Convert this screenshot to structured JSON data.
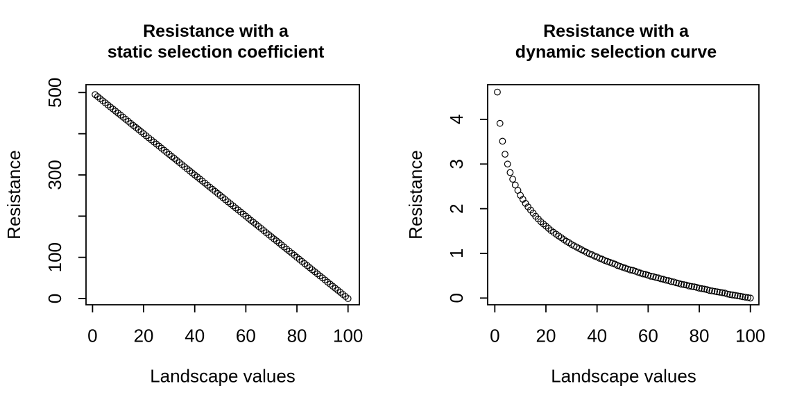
{
  "page": {
    "background": "#ffffff",
    "foreground": "#000000"
  },
  "chart_data": [
    {
      "type": "scatter",
      "title_lines": [
        "Resistance with a",
        "static selection coefficient"
      ],
      "xlabel": "Landscape values",
      "ylabel": "Resistance",
      "point_style": "open-circle",
      "color": "#000000",
      "grid": false,
      "legend": "none",
      "xlim": [
        0,
        100
      ],
      "ylim": [
        0,
        500
      ],
      "x_ticks": [
        0,
        20,
        40,
        60,
        80,
        100
      ],
      "x_tick_labels": [
        "0",
        "20",
        "40",
        "60",
        "80",
        "100"
      ],
      "y_ticks": [
        0,
        100,
        200,
        300,
        400,
        500
      ],
      "y_tick_labels": [
        "0",
        "100",
        "",
        "300",
        "",
        "500"
      ],
      "x": [
        1,
        2,
        3,
        4,
        5,
        6,
        7,
        8,
        9,
        10,
        11,
        12,
        13,
        14,
        15,
        16,
        17,
        18,
        19,
        20,
        21,
        22,
        23,
        24,
        25,
        26,
        27,
        28,
        29,
        30,
        31,
        32,
        33,
        34,
        35,
        36,
        37,
        38,
        39,
        40,
        41,
        42,
        43,
        44,
        45,
        46,
        47,
        48,
        49,
        50,
        51,
        52,
        53,
        54,
        55,
        56,
        57,
        58,
        59,
        60,
        61,
        62,
        63,
        64,
        65,
        66,
        67,
        68,
        69,
        70,
        71,
        72,
        73,
        74,
        75,
        76,
        77,
        78,
        79,
        80,
        81,
        82,
        83,
        84,
        85,
        86,
        87,
        88,
        89,
        90,
        91,
        92,
        93,
        94,
        95,
        96,
        97,
        98,
        99,
        100
      ],
      "y": [
        495,
        490,
        485,
        480,
        475,
        470,
        465,
        460,
        455,
        450,
        445,
        440,
        435,
        430,
        425,
        420,
        415,
        410,
        405,
        400,
        395,
        390,
        385,
        380,
        375,
        370,
        365,
        360,
        355,
        350,
        345,
        340,
        335,
        330,
        325,
        320,
        315,
        310,
        305,
        300,
        295,
        290,
        285,
        280,
        275,
        270,
        265,
        260,
        255,
        250,
        245,
        240,
        235,
        230,
        225,
        220,
        215,
        210,
        205,
        200,
        195,
        190,
        185,
        180,
        175,
        170,
        165,
        160,
        155,
        150,
        145,
        140,
        135,
        130,
        125,
        120,
        115,
        110,
        105,
        100,
        95,
        90,
        85,
        80,
        75,
        70,
        65,
        60,
        55,
        50,
        45,
        40,
        35,
        30,
        25,
        20,
        15,
        10,
        5,
        0
      ]
    },
    {
      "type": "scatter",
      "title_lines": [
        "Resistance with a",
        "dynamic selection curve"
      ],
      "xlabel": "Landscape values",
      "ylabel": "Resistance",
      "point_style": "open-circle",
      "color": "#000000",
      "grid": false,
      "legend": "none",
      "xlim": [
        0,
        100
      ],
      "ylim": [
        0,
        4.61
      ],
      "x_ticks": [
        0,
        20,
        40,
        60,
        80,
        100
      ],
      "x_tick_labels": [
        "0",
        "20",
        "40",
        "60",
        "80",
        "100"
      ],
      "y_ticks": [
        0,
        1,
        2,
        3,
        4
      ],
      "y_tick_labels": [
        "0",
        "1",
        "2",
        "3",
        "4"
      ],
      "x": [
        1,
        2,
        3,
        4,
        5,
        6,
        7,
        8,
        9,
        10,
        11,
        12,
        13,
        14,
        15,
        16,
        17,
        18,
        19,
        20,
        21,
        22,
        23,
        24,
        25,
        26,
        27,
        28,
        29,
        30,
        31,
        32,
        33,
        34,
        35,
        36,
        37,
        38,
        39,
        40,
        41,
        42,
        43,
        44,
        45,
        46,
        47,
        48,
        49,
        50,
        51,
        52,
        53,
        54,
        55,
        56,
        57,
        58,
        59,
        60,
        61,
        62,
        63,
        64,
        65,
        66,
        67,
        68,
        69,
        70,
        71,
        72,
        73,
        74,
        75,
        76,
        77,
        78,
        79,
        80,
        81,
        82,
        83,
        84,
        85,
        86,
        87,
        88,
        89,
        90,
        91,
        92,
        93,
        94,
        95,
        96,
        97,
        98,
        99,
        100
      ],
      "y": [
        4.61,
        3.91,
        3.51,
        3.22,
        3.0,
        2.81,
        2.66,
        2.53,
        2.41,
        2.3,
        2.21,
        2.12,
        2.04,
        1.97,
        1.9,
        1.83,
        1.77,
        1.71,
        1.66,
        1.61,
        1.56,
        1.51,
        1.47,
        1.43,
        1.39,
        1.35,
        1.31,
        1.27,
        1.24,
        1.2,
        1.17,
        1.14,
        1.11,
        1.08,
        1.05,
        1.02,
        0.99,
        0.97,
        0.94,
        0.92,
        0.89,
        0.87,
        0.84,
        0.82,
        0.8,
        0.78,
        0.76,
        0.73,
        0.71,
        0.69,
        0.67,
        0.65,
        0.63,
        0.62,
        0.6,
        0.58,
        0.56,
        0.54,
        0.53,
        0.51,
        0.49,
        0.48,
        0.46,
        0.45,
        0.43,
        0.42,
        0.4,
        0.39,
        0.37,
        0.36,
        0.34,
        0.33,
        0.31,
        0.3,
        0.29,
        0.27,
        0.26,
        0.25,
        0.24,
        0.22,
        0.21,
        0.2,
        0.19,
        0.17,
        0.16,
        0.15,
        0.14,
        0.13,
        0.12,
        0.11,
        0.09,
        0.08,
        0.07,
        0.06,
        0.05,
        0.04,
        0.03,
        0.02,
        0.01,
        0.0
      ]
    }
  ]
}
